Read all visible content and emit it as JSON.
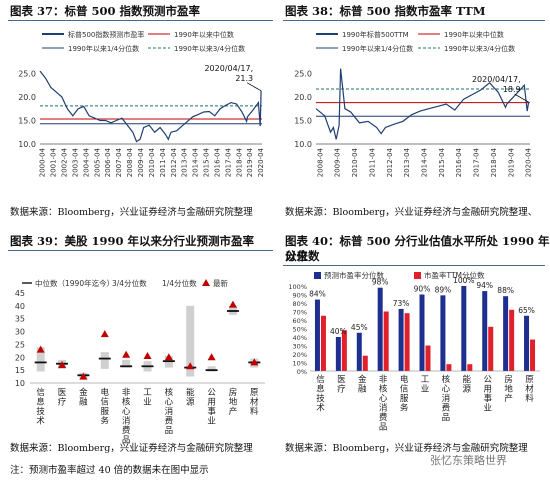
{
  "panels": {
    "p37": {
      "title": "图表 37：标普 500 指数预测市盈率",
      "source": "数据来源：Bloomberg，兴业证券经济与金融研究院整理"
    },
    "p38": {
      "title": "图表 38：标普 500 指数市盈率 TTM",
      "source": "数据来源：Bloomberg，兴业证券经济与金融研究院整理、"
    },
    "p39": {
      "title": "图表 39：美股 1990 年以来分行业预测市盈率",
      "source": "数据来源：Bloomberg，兴业证券经济与金融研究院整理",
      "note": "注：预测市盈率超过 40 倍的数据未在图中显示"
    },
    "p40": {
      "title_line1": "图表 40：标普 500 分行业估值水平所处 1990 年以来",
      "title_line2": "分位数",
      "source": "数据来源：Bloomberg，兴业证券经济与金融研究院整理"
    }
  },
  "watermark": "张忆东策略世界",
  "colors": {
    "navy": "#1f3f73",
    "red": "#c00000",
    "teal": "#1f6f6f",
    "blue_bar": "#1f2f8f",
    "red_bar": "#e0202a",
    "gray_bar": "#d0d0d0"
  },
  "chart_data": [
    {
      "id": "p37",
      "type": "line",
      "series": [
        {
          "name": "标普500指数预测市盈率",
          "color": "#1f3f73",
          "x": [
            "2000-01",
            "2000-07",
            "2001-01",
            "2001-07",
            "2002-01",
            "2002-07",
            "2003-01",
            "2003-07",
            "2004-01",
            "2004-07",
            "2005-01",
            "2005-07",
            "2006-01",
            "2006-07",
            "2007-01",
            "2007-07",
            "2008-01",
            "2008-07",
            "2008-11",
            "2009-03",
            "2009-07",
            "2010-01",
            "2010-07",
            "2011-01",
            "2011-07",
            "2011-10",
            "2012-01",
            "2012-07",
            "2013-01",
            "2013-07",
            "2014-01",
            "2014-07",
            "2015-01",
            "2015-07",
            "2016-01",
            "2016-07",
            "2017-01",
            "2017-07",
            "2018-01",
            "2018-07",
            "2018-12",
            "2019-01",
            "2019-07",
            "2020-01",
            "2020-03",
            "2020-04"
          ],
          "values": [
            25.5,
            24.0,
            22.0,
            21.0,
            20.0,
            17.5,
            16.0,
            17.5,
            18.0,
            16.0,
            15.5,
            15.0,
            15.0,
            14.5,
            15.0,
            15.5,
            14.0,
            12.5,
            10.5,
            11.0,
            13.5,
            14.0,
            12.5,
            13.5,
            12.0,
            11.0,
            12.5,
            12.8,
            13.8,
            14.8,
            15.8,
            16.3,
            16.8,
            16.9,
            16.0,
            17.5,
            18.2,
            18.8,
            18.5,
            16.8,
            14.8,
            15.8,
            17.2,
            18.8,
            13.8,
            21.3
          ]
        },
        {
          "name": "1990年以来中位数",
          "color": "#c00000",
          "value": 15.3
        },
        {
          "name": "1990年以来1/4分位数",
          "color": "#1f3f73",
          "value": 14.3
        },
        {
          "name": "1990年以来3/4分位数",
          "color": "#1f6f6f",
          "value": 18.1
        }
      ],
      "x_tick_labels": [
        "2000-04",
        "2001-04",
        "2002-04",
        "2003-04",
        "2004-04",
        "2005-04",
        "2006-04",
        "2007-04",
        "2008-04",
        "2009-04",
        "2010-04",
        "2011-04",
        "2012-04",
        "2013-04",
        "2014-04",
        "2015-04",
        "2016-04",
        "2017-04",
        "2018-04",
        "2019-04",
        "2020-04"
      ],
      "ylim": [
        10,
        27
      ],
      "y_ticks": [
        "10.0",
        "15.0",
        "20.0",
        "25.0"
      ],
      "annotation": {
        "date": "2020/04/17,",
        "value": "21.3"
      }
    },
    {
      "id": "p38",
      "type": "line",
      "series": [
        {
          "name": "1990年标普500TTM",
          "color": "#1f3f73",
          "x": [
            "2008-01",
            "2008-07",
            "2008-11",
            "2009-01",
            "2009-03",
            "2009-05",
            "2009-06",
            "2009-09",
            "2010-01",
            "2010-07",
            "2011-01",
            "2011-07",
            "2011-10",
            "2012-01",
            "2012-07",
            "2013-01",
            "2013-07",
            "2014-01",
            "2014-07",
            "2015-01",
            "2015-07",
            "2016-01",
            "2016-07",
            "2017-01",
            "2017-07",
            "2018-01",
            "2018-07",
            "2018-12",
            "2019-01",
            "2019-07",
            "2020-01",
            "2020-03",
            "2020-04"
          ],
          "values": [
            17.5,
            16.0,
            12.5,
            13.5,
            11.0,
            14.0,
            26.0,
            17.5,
            16.8,
            14.5,
            14.8,
            13.5,
            12.2,
            13.5,
            14.2,
            14.8,
            16.2,
            17.0,
            17.5,
            18.0,
            18.5,
            17.2,
            19.5,
            20.5,
            21.5,
            23.0,
            21.0,
            17.8,
            18.5,
            20.5,
            22.5,
            17.0,
            18.9
          ]
        },
        {
          "name": "1990年以来中位数",
          "color": "#c00000",
          "value": 18.8
        },
        {
          "name": "1990年以来1/4分位数",
          "color": "#1f3f73",
          "value": 15.9
        },
        {
          "name": "1990年以来3/4分位数",
          "color": "#1f6f6f",
          "value": 21.7
        }
      ],
      "x_tick_labels": [
        "2008-04",
        "2009-04",
        "2010-04",
        "2011-04",
        "2012-04",
        "2013-04",
        "2014-04",
        "2015-04",
        "2016-04",
        "2017-04",
        "2018-04",
        "2019-04",
        "2020-04"
      ],
      "ylim": [
        10,
        27
      ],
      "y_ticks": [
        "10.0",
        "15.0",
        "20.0",
        "25.0"
      ],
      "annotation": {
        "date": "2020/04/17,",
        "value": "18.9"
      }
    },
    {
      "id": "p39",
      "type": "bar",
      "categories": [
        "信息技术",
        "医疗",
        "金融",
        "电信服务",
        "非核心消费品",
        "工业",
        "核心消费品",
        "能源",
        "公用事业",
        "房地产",
        "原材料"
      ],
      "legend": [
        "中位数（1990年迄今）",
        "3/4分位数",
        "1/4分位数",
        "最新"
      ],
      "q1": [
        14.5,
        15.5,
        11.5,
        15.5,
        16.0,
        14.5,
        16.0,
        12.5,
        14.5,
        36.5,
        16.0
      ],
      "q3": [
        24.0,
        19.0,
        14.0,
        22.0,
        19.0,
        18.5,
        20.5,
        40.0,
        16.5,
        40.0,
        19.5
      ],
      "median": [
        18.0,
        17.5,
        13.0,
        19.5,
        16.5,
        16.5,
        18.5,
        16.0,
        15.0,
        38.0,
        18.0
      ],
      "latest": [
        23.0,
        17.0,
        12.5,
        29.0,
        21.0,
        20.5,
        20.0,
        16.5,
        20.0,
        40.5,
        18.0
      ],
      "ylim": [
        10,
        45
      ],
      "y_ticks": [
        "10",
        "15",
        "20",
        "25",
        "30",
        "35",
        "40",
        "45"
      ]
    },
    {
      "id": "p40",
      "type": "bar",
      "categories": [
        "信息技术",
        "医疗",
        "金融",
        "非核心消费品",
        "电信服务",
        "工业",
        "核心消费品",
        "能源",
        "公用事业",
        "房地产",
        "原材料"
      ],
      "series": [
        {
          "name": "预测市盈率分位数",
          "color": "#1f2f8f",
          "values": [
            84,
            40,
            45,
            98,
            73,
            90,
            89,
            100,
            94,
            88,
            65
          ]
        },
        {
          "name": "市盈率TTM分位数",
          "color": "#e0202a",
          "values": [
            65,
            48,
            18,
            70,
            68,
            30,
            8,
            8,
            52,
            72,
            37
          ]
        }
      ],
      "data_labels": [
        "84%",
        "40%",
        "45%",
        "98%",
        "73%",
        "90%",
        "89%",
        "100%",
        "94%",
        "88%",
        "65%"
      ],
      "ylim": [
        0,
        100
      ],
      "y_ticks": [
        "0%",
        "10%",
        "20%",
        "30%",
        "40%",
        "50%",
        "60%",
        "70%",
        "80%",
        "90%",
        "100%"
      ]
    }
  ]
}
